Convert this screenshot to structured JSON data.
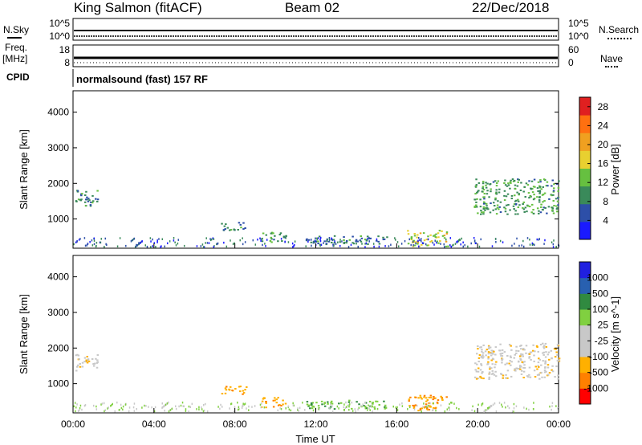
{
  "header": {
    "station": "King Salmon (fitACF)",
    "beam": "Beam 02",
    "date": "22/Dec/2018"
  },
  "left_labels": {
    "nsky": "N.Sky",
    "freq": "Freq.",
    "freq_unit": "[MHz]",
    "cpid": "CPID"
  },
  "right_labels": {
    "nsearch": "N.Search",
    "nave": "Nave"
  },
  "noise_ticks": {
    "left_top": "10^5",
    "left_bottom": "10^0",
    "right_top": "10^5",
    "right_bottom": "10^0"
  },
  "freq_ticks": {
    "left_top": "18",
    "left_bottom": "8",
    "right_top": "60",
    "right_bottom": "0"
  },
  "cpid_text": "normalsound (fast) 157 RF",
  "colors": {
    "power_scale": [
      "#1a1aff",
      "#2d4fa8",
      "#3a8a5a",
      "#66c040",
      "#e8d030",
      "#f0a020",
      "#ff7010",
      "#e02020"
    ],
    "velocity_scale": [
      "#ff0000",
      "#ff8000",
      "#ffb000",
      "#c8c8c8",
      "#c8c8c8",
      "#80d040",
      "#308a40",
      "#2860b0",
      "#2020e0"
    ]
  },
  "chart_data": [
    {
      "type": "heatmap",
      "title": "",
      "xlabel": "",
      "ylabel": "Slant Range [km]",
      "x_ticks": [
        "00:00",
        "04:00",
        "08:00",
        "12:00",
        "16:00",
        "20:00",
        "00:00"
      ],
      "y_ticks": [
        "1000",
        "2000",
        "3000",
        "4000"
      ],
      "xlim": [
        0,
        24
      ],
      "ylim": [
        180,
        4600
      ],
      "colorbar_label": "Power [dB]",
      "colorbar_ticks": [
        "4",
        "8",
        "12",
        "16",
        "20",
        "24",
        "28"
      ],
      "colorbar_range": [
        0,
        30
      ],
      "scatter_regions": [
        {
          "t0": 0.1,
          "t1": 1.2,
          "r0": 1350,
          "r1": 1850,
          "level": 8
        },
        {
          "t0": 7.3,
          "t1": 8.6,
          "r0": 700,
          "r1": 950,
          "level": 8
        },
        {
          "t0": 9.2,
          "t1": 10.5,
          "r0": 350,
          "r1": 650,
          "level": 10
        },
        {
          "t0": 11.5,
          "t1": 15.5,
          "r0": 300,
          "r1": 550,
          "level": 8
        },
        {
          "t0": 16.5,
          "t1": 18.5,
          "r0": 250,
          "r1": 700,
          "level": 16
        },
        {
          "t0": 19.8,
          "t1": 24.0,
          "r0": 1150,
          "r1": 2150,
          "level": 10
        }
      ]
    },
    {
      "type": "heatmap",
      "title": "",
      "xlabel": "Time UT",
      "ylabel": "Slant Range [km]",
      "x_ticks": [
        "00:00",
        "04:00",
        "08:00",
        "12:00",
        "16:00",
        "20:00",
        "00:00"
      ],
      "y_ticks": [
        "1000",
        "2000",
        "3000",
        "4000"
      ],
      "xlim": [
        0,
        24
      ],
      "ylim": [
        180,
        4600
      ],
      "colorbar_label": "Velocity [m s^-1]",
      "colorbar_ticks": [
        "1000",
        "500",
        "100",
        "25",
        "-25",
        "-100",
        "-500",
        "-1000"
      ],
      "scatter_regions": [
        {
          "t0": 0.1,
          "t1": 1.2,
          "r0": 1350,
          "r1": 1850,
          "level": "ground"
        },
        {
          "t0": 7.3,
          "t1": 8.6,
          "r0": 700,
          "r1": 950,
          "level": "negative"
        },
        {
          "t0": 9.2,
          "t1": 10.5,
          "r0": 350,
          "r1": 650,
          "level": "negative"
        },
        {
          "t0": 11.5,
          "t1": 15.5,
          "r0": 300,
          "r1": 550,
          "level": "positive"
        },
        {
          "t0": 16.5,
          "t1": 18.5,
          "r0": 250,
          "r1": 700,
          "level": "negative"
        },
        {
          "t0": 19.8,
          "t1": 24.0,
          "r0": 1150,
          "r1": 2150,
          "level": "ground"
        }
      ]
    }
  ]
}
